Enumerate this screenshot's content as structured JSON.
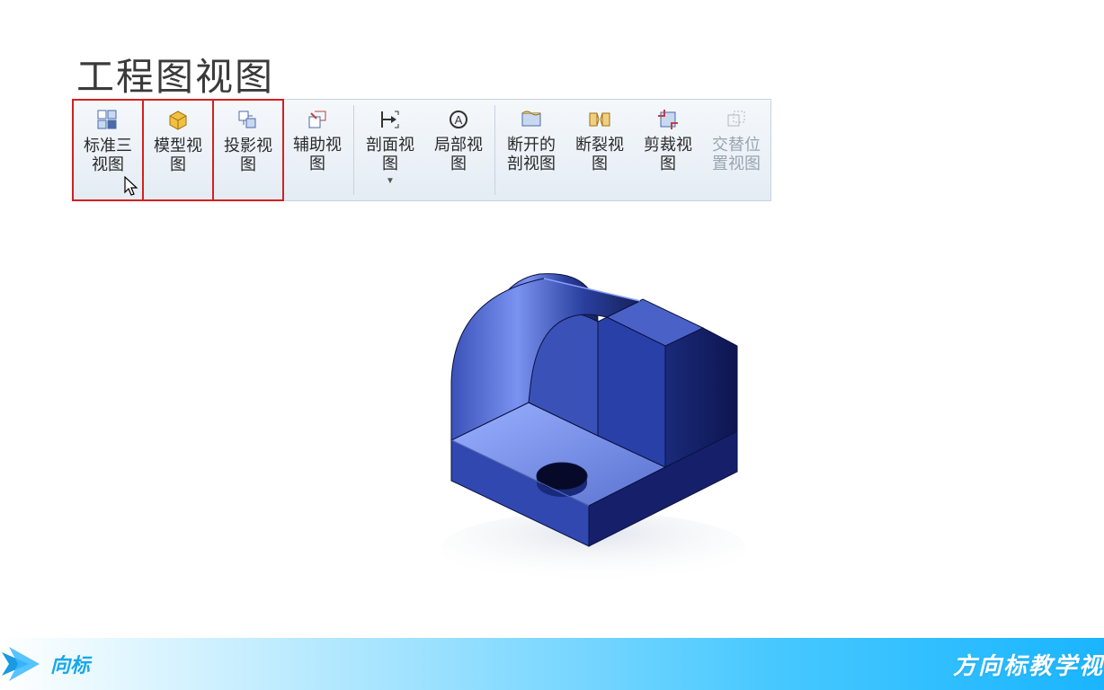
{
  "page": {
    "title": "工程图视图",
    "footer_left": "向标",
    "footer_right": "方向标教学视"
  },
  "toolbar": {
    "buttons": [
      {
        "label": "标准三视图",
        "icon": "standard-views-icon",
        "highlight": true,
        "disabled": false,
        "dropdown": false
      },
      {
        "label": "模型视图",
        "icon": "model-view-icon",
        "highlight": true,
        "disabled": false,
        "dropdown": false
      },
      {
        "label": "投影视图",
        "icon": "projected-view-icon",
        "highlight": true,
        "disabled": false,
        "dropdown": false
      },
      {
        "label": "辅助视图",
        "icon": "aux-view-icon",
        "highlight": false,
        "disabled": false,
        "dropdown": false
      },
      {
        "label": "剖面视图",
        "icon": "section-view-icon",
        "highlight": false,
        "disabled": false,
        "dropdown": true
      },
      {
        "label": "局部视图",
        "icon": "detail-view-icon",
        "highlight": false,
        "disabled": false,
        "dropdown": false
      },
      {
        "label": "断开的剖视图",
        "icon": "broken-section-icon",
        "highlight": false,
        "disabled": false,
        "dropdown": false
      },
      {
        "label": "断裂视图",
        "icon": "break-view-icon",
        "highlight": false,
        "disabled": false,
        "dropdown": false
      },
      {
        "label": "剪裁视图",
        "icon": "crop-view-icon",
        "highlight": false,
        "disabled": false,
        "dropdown": false
      },
      {
        "label": "交替位置视图",
        "icon": "alt-pos-view-icon",
        "highlight": false,
        "disabled": true,
        "dropdown": false
      }
    ],
    "separators_after": [
      3,
      5
    ]
  },
  "colors": {
    "highlight_border": "#d32020",
    "toolbar_bg_top": "#f5f8fb",
    "toolbar_bg_bot": "#e4ecf4",
    "model_body": "#2a3f9e",
    "model_light": "#5a72d0",
    "model_dark": "#16205a",
    "footer_grad_end": "#1ab5ff"
  },
  "model": {
    "description": "3D isometric blue mechanical part with cylindrical back and rectangular base with hole",
    "body_color": "#2a3f9e",
    "highlight_color": "#6a82e0",
    "shadow_color": "#16205a",
    "hole_color": "#0a1030"
  }
}
